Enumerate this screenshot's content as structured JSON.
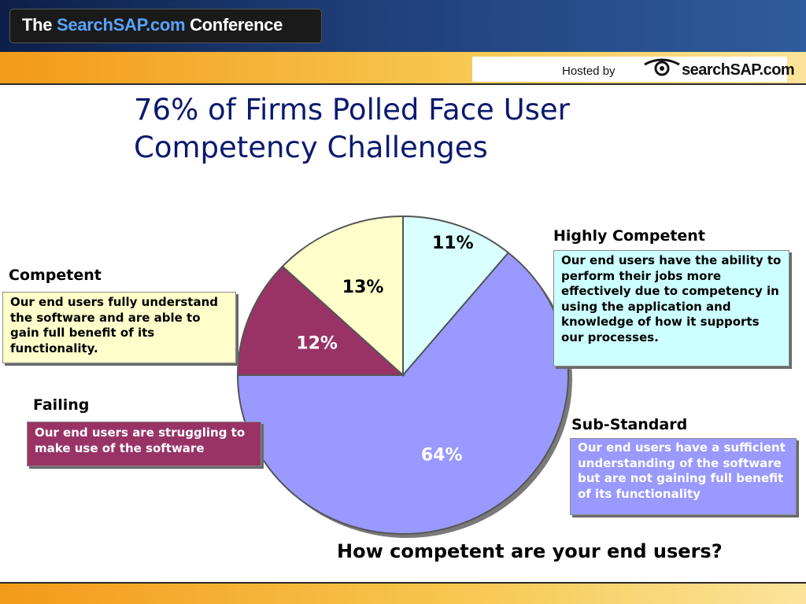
{
  "header": {
    "conference_prefix": "The ",
    "conference_brand": "SearchSAP.com",
    "conference_suffix": " Conference",
    "hosted_by": "Hosted by",
    "logo_text": "searchSAP.com"
  },
  "slide": {
    "title_line1": "76% of Firms Polled Face User",
    "title_line2": "Competency Challenges",
    "question": "How competent are your end users?"
  },
  "chart_data": {
    "type": "pie",
    "slices": [
      {
        "name": "Highly Competent",
        "value": 11,
        "label": "11%",
        "color": "#d9ffff",
        "description": "Our end users have the ability to perform their jobs more effectively due to competency in using the application and knowledge of how it supports our processes."
      },
      {
        "name": "Sub-Standard",
        "value": 64,
        "label": "64%",
        "color": "#9999ff",
        "description": "Our end users have a sufficient understanding of the software but are not gaining full benefit of its functionality"
      },
      {
        "name": "Failing",
        "value": 12,
        "label": "12%",
        "color": "#993366",
        "description": "Our end users are struggling to make use of the software"
      },
      {
        "name": "Competent",
        "value": 13,
        "label": "13%",
        "color": "#ffffcc",
        "description": "Our end users fully understand the software and are able to gain full benefit of its functionality."
      }
    ]
  }
}
